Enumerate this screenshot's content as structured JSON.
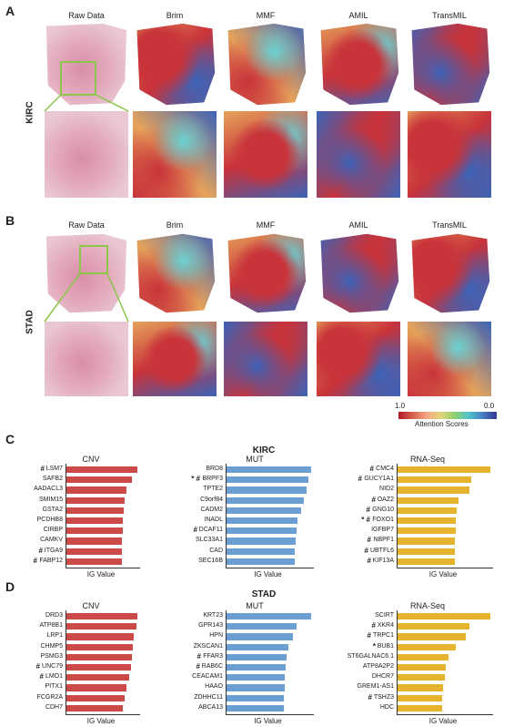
{
  "panels": {
    "A": {
      "letter": "A",
      "dataset": "KIRC"
    },
    "B": {
      "letter": "B",
      "dataset": "STAD"
    },
    "C": {
      "letter": "C",
      "dataset": "KIRC"
    },
    "D": {
      "letter": "D",
      "dataset": "STAD"
    }
  },
  "columns": [
    "Raw Data",
    "Brim",
    "MMF",
    "AMIL",
    "TransMIL"
  ],
  "legend": {
    "max": "1.0",
    "min": "0.0",
    "label": "Attention Scores"
  },
  "charts": {
    "x_label": "IG Value",
    "C": {
      "CNV": {
        "title": "CNV",
        "color": "#cc4a47",
        "genes": [
          {
            "name": "LSM7",
            "mark": "#",
            "v": 1.0
          },
          {
            "name": "SAFB2",
            "mark": "",
            "v": 0.92
          },
          {
            "name": "AADACL3",
            "mark": "",
            "v": 0.84
          },
          {
            "name": "SMIM15",
            "mark": "",
            "v": 0.82
          },
          {
            "name": "GSTA2",
            "mark": "",
            "v": 0.81
          },
          {
            "name": "PCDHB8",
            "mark": "",
            "v": 0.8
          },
          {
            "name": "CIRBP",
            "mark": "",
            "v": 0.79
          },
          {
            "name": "CAMKV",
            "mark": "",
            "v": 0.78
          },
          {
            "name": "ITGA9",
            "mark": "#",
            "v": 0.78
          },
          {
            "name": "FABP12",
            "mark": "#",
            "v": 0.78
          }
        ]
      },
      "MUT": {
        "title": "MUT",
        "color": "#6b9fd3",
        "genes": [
          {
            "name": "BRD8",
            "mark": "",
            "v": 1.0
          },
          {
            "name": "BRPF3",
            "mark": "* #",
            "v": 0.97
          },
          {
            "name": "TPTE2",
            "mark": "",
            "v": 0.95
          },
          {
            "name": "C9orf84",
            "mark": "",
            "v": 0.91
          },
          {
            "name": "CADM2",
            "mark": "",
            "v": 0.88
          },
          {
            "name": "INADL",
            "mark": "",
            "v": 0.84
          },
          {
            "name": "DCAF11",
            "mark": "#",
            "v": 0.83
          },
          {
            "name": "SLC33A1",
            "mark": "",
            "v": 0.82
          },
          {
            "name": "CAD",
            "mark": "",
            "v": 0.81
          },
          {
            "name": "SEC16B",
            "mark": "",
            "v": 0.81
          }
        ]
      },
      "RNA": {
        "title": "RNA-Seq",
        "color": "#e6b32e",
        "genes": [
          {
            "name": "CMC4",
            "mark": "#",
            "v": 1.0
          },
          {
            "name": "GUCY1A1",
            "mark": "#",
            "v": 0.79
          },
          {
            "name": "NID2",
            "mark": "",
            "v": 0.77
          },
          {
            "name": "OAZ2",
            "mark": "#",
            "v": 0.66
          },
          {
            "name": "GNG10",
            "mark": "#",
            "v": 0.64
          },
          {
            "name": "FOXO1",
            "mark": "* #",
            "v": 0.63
          },
          {
            "name": "IGFBP7",
            "mark": "",
            "v": 0.63
          },
          {
            "name": "NBPF1",
            "mark": "#",
            "v": 0.62
          },
          {
            "name": "UBTFL6",
            "mark": "#",
            "v": 0.62
          },
          {
            "name": "KIF13A",
            "mark": "#",
            "v": 0.62
          }
        ]
      }
    },
    "D": {
      "CNV": {
        "title": "CNV",
        "color": "#cc4a47",
        "genes": [
          {
            "name": "DRD3",
            "mark": "",
            "v": 1.0
          },
          {
            "name": "ATP8B1",
            "mark": "",
            "v": 0.99
          },
          {
            "name": "LRP1",
            "mark": "",
            "v": 0.95
          },
          {
            "name": "CHMP5",
            "mark": "",
            "v": 0.93
          },
          {
            "name": "PSMG3",
            "mark": "",
            "v": 0.92
          },
          {
            "name": "UNC79",
            "mark": "#",
            "v": 0.91
          },
          {
            "name": "LMO1",
            "mark": "#",
            "v": 0.89
          },
          {
            "name": "PITX1",
            "mark": "",
            "v": 0.85
          },
          {
            "name": "FCGR2A",
            "mark": "",
            "v": 0.82
          },
          {
            "name": "CDH7",
            "mark": "",
            "v": 0.8
          }
        ]
      },
      "MUT": {
        "title": "MUT",
        "color": "#6b9fd3",
        "genes": [
          {
            "name": "KRT23",
            "mark": "",
            "v": 1.0
          },
          {
            "name": "GPR143",
            "mark": "",
            "v": 0.83
          },
          {
            "name": "HPN",
            "mark": "",
            "v": 0.79
          },
          {
            "name": "ZKSCAN1",
            "mark": "",
            "v": 0.73
          },
          {
            "name": "FFAR3",
            "mark": "#",
            "v": 0.71
          },
          {
            "name": "RAB6C",
            "mark": "#",
            "v": 0.7
          },
          {
            "name": "CEACAM1",
            "mark": "",
            "v": 0.69
          },
          {
            "name": "HAAO",
            "mark": "",
            "v": 0.69
          },
          {
            "name": "ZDHHC11",
            "mark": "",
            "v": 0.68
          },
          {
            "name": "ABCA13",
            "mark": "",
            "v": 0.68
          }
        ]
      },
      "RNA": {
        "title": "RNA-Seq",
        "color": "#e6b32e",
        "genes": [
          {
            "name": "SCIRT",
            "mark": "",
            "v": 1.0
          },
          {
            "name": "XKR4",
            "mark": "#",
            "v": 0.77
          },
          {
            "name": "TRPC1",
            "mark": "#",
            "v": 0.74
          },
          {
            "name": "BUB1",
            "mark": "*",
            "v": 0.63
          },
          {
            "name": "ST6GALNAC6.1",
            "mark": "",
            "v": 0.55
          },
          {
            "name": "ATP8A2P2",
            "mark": "",
            "v": 0.52
          },
          {
            "name": "DHCR7",
            "mark": "",
            "v": 0.51
          },
          {
            "name": "GREM1-AS1",
            "mark": "",
            "v": 0.49
          },
          {
            "name": "TSHZ3",
            "mark": "#",
            "v": 0.48
          },
          {
            "name": "HDC",
            "mark": "",
            "v": 0.48
          }
        ]
      }
    }
  },
  "colors": {
    "raw_bg": "#e9c8d1",
    "raw_tissue": "#d98fa6",
    "hot": "#c9333a",
    "warm": "#e6a35b",
    "cool": "#3c63b8",
    "cyan": "#6ad1d4",
    "zoom": "#8bc64b"
  }
}
